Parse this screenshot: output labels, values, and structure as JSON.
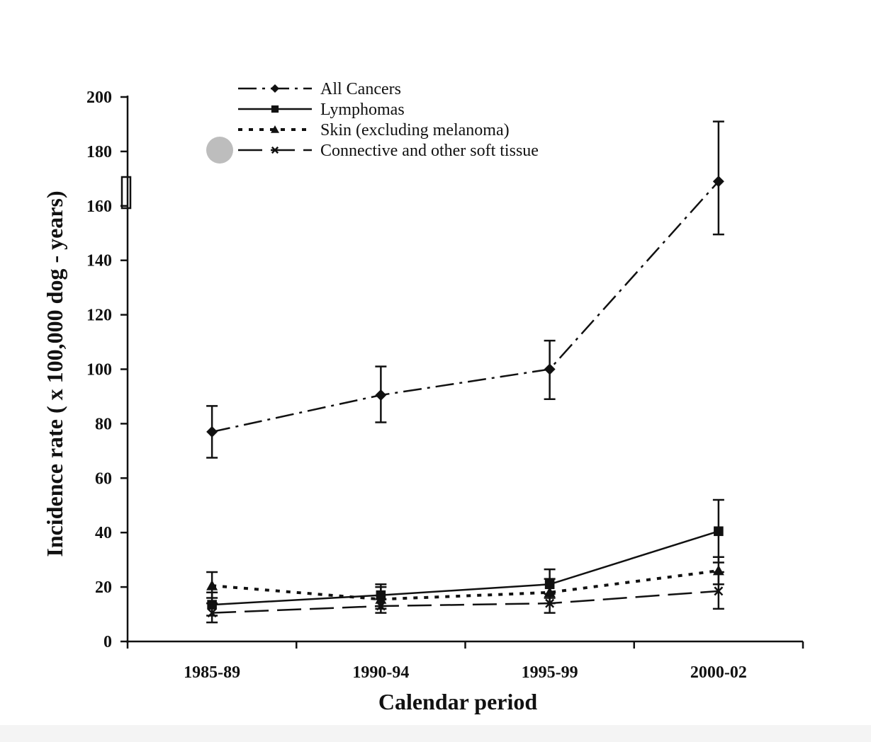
{
  "chart_data": {
    "type": "line",
    "title": "",
    "xlabel": "Calendar period",
    "ylabel": "Incidence rate ( x 100,000 dog - years)",
    "categories": [
      "1985-89",
      "1990-94",
      "1995-99",
      "2000-02"
    ],
    "ylim": [
      0,
      200
    ],
    "yticks": [
      0,
      20,
      40,
      60,
      80,
      100,
      120,
      140,
      160,
      180,
      200
    ],
    "grid": false,
    "legend_position": "top-left",
    "error_bars": true,
    "series": [
      {
        "name": "All Cancers",
        "marker": "diamond",
        "line_style": "dash-dot",
        "values": [
          77,
          90.5,
          100,
          169
        ],
        "error_low": [
          67.5,
          80.5,
          89,
          149.5
        ],
        "error_high": [
          86.5,
          101,
          110.5,
          191
        ]
      },
      {
        "name": "Lymphomas",
        "marker": "square",
        "line_style": "solid",
        "values": [
          13.5,
          17,
          21,
          40.5
        ],
        "error_low": [
          9.5,
          13,
          16,
          29
        ],
        "error_high": [
          18,
          21,
          26.5,
          52
        ]
      },
      {
        "name": "Skin (excluding melanoma)",
        "marker": "triangle",
        "line_style": "dotted",
        "values": [
          20.5,
          15.5,
          18,
          26
        ],
        "error_low": [
          16,
          12,
          14,
          21
        ],
        "error_high": [
          25.5,
          20,
          23,
          31
        ]
      },
      {
        "name": "Connective and other soft tissue",
        "marker": "x",
        "line_style": "long-dash",
        "values": [
          10.5,
          13,
          14,
          18.5
        ],
        "error_low": [
          7,
          10.5,
          10.5,
          12
        ],
        "error_high": [
          14,
          15.5,
          17.5,
          25.5
        ]
      }
    ]
  }
}
